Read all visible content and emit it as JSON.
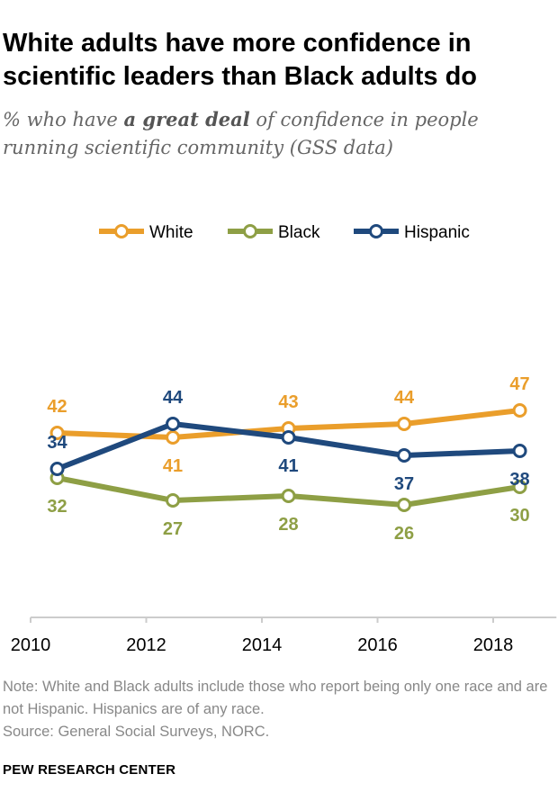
{
  "title": "White adults have more confidence in scientific leaders than Black adults do",
  "subtitle": {
    "pre": "% who have ",
    "emph": "a great deal",
    "post": " of confidence in people running scientific community (GSS data)"
  },
  "chart_data": {
    "type": "line",
    "x": [
      2010,
      2012,
      2014,
      2016,
      2018
    ],
    "xticks": [
      "2010",
      "2012",
      "2014",
      "2016",
      "2018"
    ],
    "xlim": [
      2010,
      2019
    ],
    "ylim": [
      0,
      50
    ],
    "grid": false,
    "legend_position": "top-center",
    "series": [
      {
        "name": "White",
        "color": "#EA9E2B",
        "values": [
          42,
          41,
          43,
          44,
          47
        ]
      },
      {
        "name": "Black",
        "color": "#8E9F45",
        "values": [
          32,
          27,
          28,
          26,
          30
        ]
      },
      {
        "name": "Hispanic",
        "color": "#1F497D",
        "values": [
          34,
          44,
          41,
          37,
          38
        ]
      }
    ]
  },
  "note": "Note: White and Black adults include those who report being only one race and are not Hispanic. Hispanics are of any race.",
  "source": "Source: General Social Surveys, NORC.",
  "brand": "PEW RESEARCH CENTER"
}
